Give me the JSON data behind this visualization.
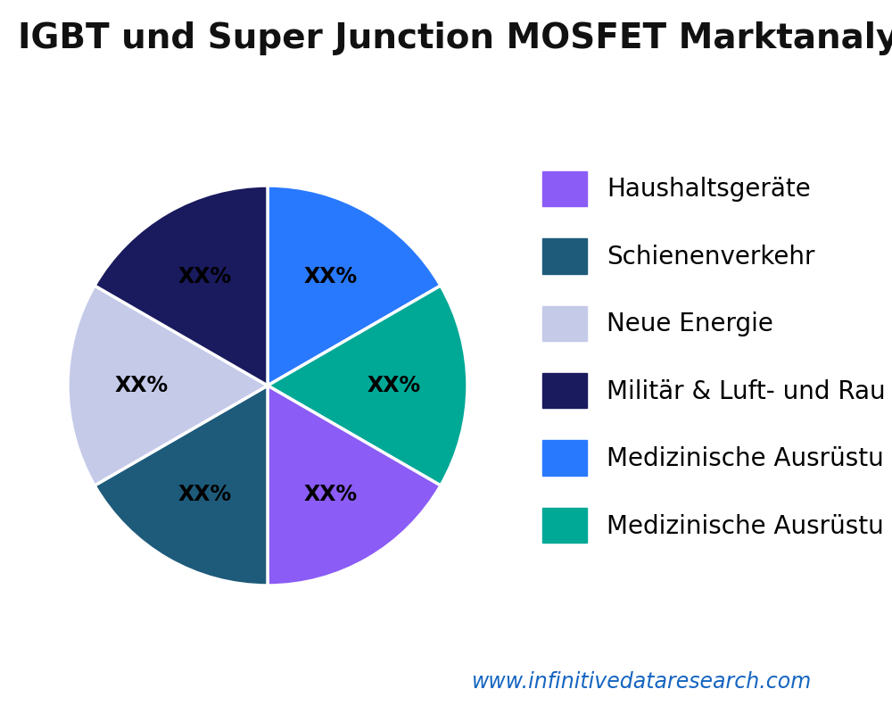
{
  "title": "IGBT und Super Junction MOSFET Marktanalyse nach An",
  "slices": [
    {
      "label": "Medizinische Ausrüstu",
      "value": 16.67,
      "color": "#2979ff"
    },
    {
      "label": "Medizinische Ausrüstu",
      "value": 16.67,
      "color": "#00a896"
    },
    {
      "label": "Haushaltsgeräte",
      "value": 16.67,
      "color": "#8b5cf6"
    },
    {
      "label": "Schienenverkehr",
      "value": 16.67,
      "color": "#1e5b7b"
    },
    {
      "label": "Neue Energie",
      "value": 16.67,
      "color": "#c5cae9"
    },
    {
      "label": "Militär & Luft- und Rau",
      "value": 16.67,
      "color": "#1a1a5e"
    }
  ],
  "legend_order": [
    {
      "label": "Haushaltsgeräte",
      "color": "#8b5cf6"
    },
    {
      "label": "Schienenverkehr",
      "color": "#1e5b7b"
    },
    {
      "label": "Neue Energie",
      "color": "#c5cae9"
    },
    {
      "label": "Militär & Luft- und Rau",
      "color": "#1a1a5e"
    },
    {
      "label": "Medizinische Ausrüstu",
      "color": "#2979ff"
    },
    {
      "label": "Medizinische Ausrüstu",
      "color": "#00a896"
    }
  ],
  "label_text": "XX%",
  "label_fontsize": 17,
  "label_color": "black",
  "title_fontsize": 28,
  "title_color": "#111111",
  "legend_fontsize": 20,
  "watermark": "www.infinitivedataresearch.com",
  "watermark_color": "#1565c0",
  "watermark_fontsize": 17,
  "background_color": "#ffffff"
}
